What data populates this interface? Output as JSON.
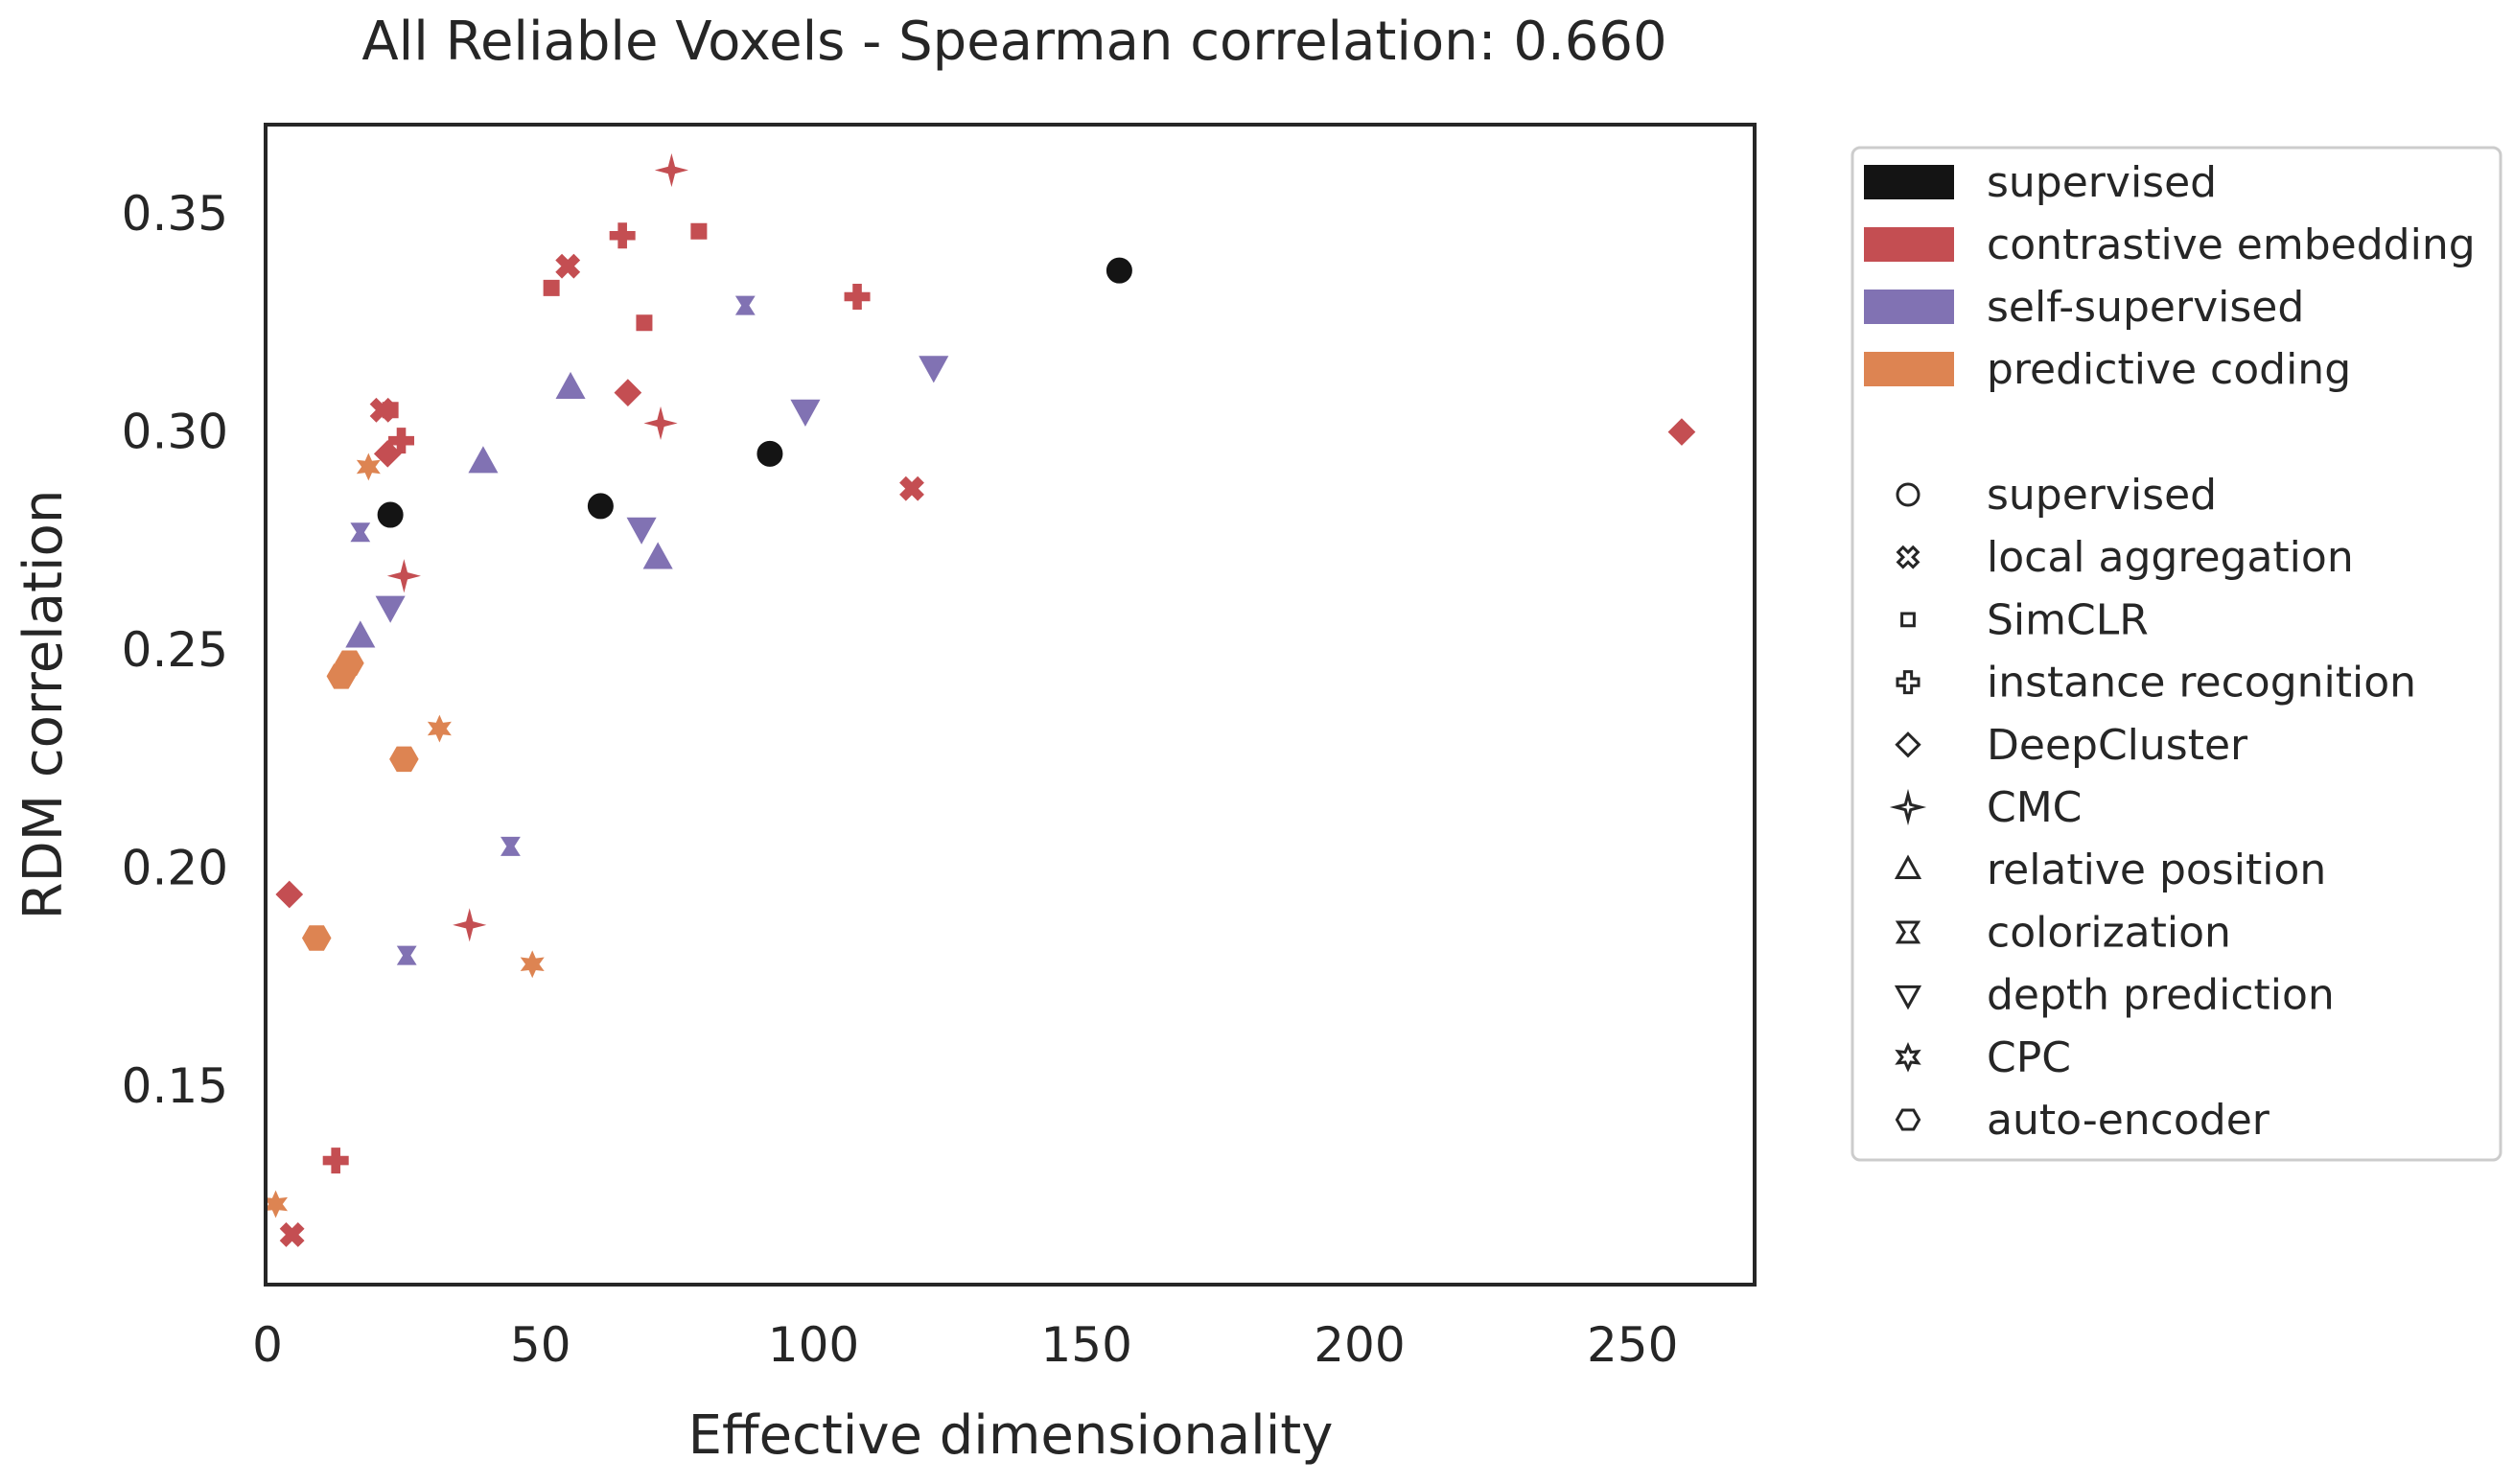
{
  "chart_data": {
    "type": "scatter",
    "title": "All Reliable Voxels - Spearman correlation: 0.660",
    "xlabel": "Effective dimensionality",
    "ylabel": "RDM correlation",
    "xlim": [
      0,
      272
    ],
    "ylim": [
      0.105,
      0.37
    ],
    "xticks": [
      0,
      50,
      100,
      150,
      200,
      250
    ],
    "yticks": [
      0.15,
      0.2,
      0.25,
      0.3,
      0.35
    ],
    "xtick_labels": [
      "0",
      "50",
      "100",
      "150",
      "200",
      "250"
    ],
    "ytick_labels": [
      "0.15",
      "0.20",
      "0.25",
      "0.30",
      "0.35"
    ],
    "grid": false,
    "legend_position": "outside-right",
    "colors": {
      "supervised": "#141414",
      "contrastive embedding": "#c44e52",
      "self-supervised": "#8172b3",
      "predictive coding": "#dd8452"
    },
    "legend": {
      "categories": [
        "supervised",
        "contrastive embedding",
        "self-supervised",
        "predictive coding"
      ],
      "methods": [
        {
          "label": "supervised",
          "marker": "circle"
        },
        {
          "label": "local aggregation",
          "marker": "x"
        },
        {
          "label": "SimCLR",
          "marker": "square"
        },
        {
          "label": "instance recognition",
          "marker": "plus"
        },
        {
          "label": "DeepCluster",
          "marker": "diamond"
        },
        {
          "label": "CMC",
          "marker": "star4"
        },
        {
          "label": "relative position",
          "marker": "triangle-up"
        },
        {
          "label": "colorization",
          "marker": "hourglass"
        },
        {
          "label": "depth prediction",
          "marker": "triangle-down"
        },
        {
          "label": "CPC",
          "marker": "star6"
        },
        {
          "label": "auto-encoder",
          "marker": "hexagon"
        }
      ]
    },
    "points": [
      {
        "x": 22.5,
        "y": 0.281,
        "category": "supervised",
        "marker": "circle"
      },
      {
        "x": 61,
        "y": 0.283,
        "category": "supervised",
        "marker": "circle"
      },
      {
        "x": 92,
        "y": 0.295,
        "category": "supervised",
        "marker": "circle"
      },
      {
        "x": 156,
        "y": 0.337,
        "category": "supervised",
        "marker": "circle"
      },
      {
        "x": 55,
        "y": 0.338,
        "category": "contrastive embedding",
        "marker": "x"
      },
      {
        "x": 118,
        "y": 0.287,
        "category": "contrastive embedding",
        "marker": "x"
      },
      {
        "x": 4.5,
        "y": 0.116,
        "category": "contrastive embedding",
        "marker": "x"
      },
      {
        "x": 21,
        "y": 0.305,
        "category": "contrastive embedding",
        "marker": "x"
      },
      {
        "x": 52,
        "y": 0.333,
        "category": "contrastive embedding",
        "marker": "square"
      },
      {
        "x": 79,
        "y": 0.346,
        "category": "contrastive embedding",
        "marker": "square"
      },
      {
        "x": 69,
        "y": 0.325,
        "category": "contrastive embedding",
        "marker": "square"
      },
      {
        "x": 22.5,
        "y": 0.305,
        "category": "contrastive embedding",
        "marker": "square"
      },
      {
        "x": 65,
        "y": 0.345,
        "category": "contrastive embedding",
        "marker": "plus"
      },
      {
        "x": 108,
        "y": 0.331,
        "category": "contrastive embedding",
        "marker": "plus"
      },
      {
        "x": 24.5,
        "y": 0.298,
        "category": "contrastive embedding",
        "marker": "plus"
      },
      {
        "x": 12.5,
        "y": 0.133,
        "category": "contrastive embedding",
        "marker": "plus"
      },
      {
        "x": 66,
        "y": 0.309,
        "category": "contrastive embedding",
        "marker": "diamond"
      },
      {
        "x": 259,
        "y": 0.3,
        "category": "contrastive embedding",
        "marker": "diamond"
      },
      {
        "x": 22,
        "y": 0.295,
        "category": "contrastive embedding",
        "marker": "diamond"
      },
      {
        "x": 4,
        "y": 0.194,
        "category": "contrastive embedding",
        "marker": "diamond"
      },
      {
        "x": 74,
        "y": 0.36,
        "category": "contrastive embedding",
        "marker": "star4"
      },
      {
        "x": 72,
        "y": 0.302,
        "category": "contrastive embedding",
        "marker": "star4"
      },
      {
        "x": 25,
        "y": 0.267,
        "category": "contrastive embedding",
        "marker": "star4"
      },
      {
        "x": 37,
        "y": 0.187,
        "category": "contrastive embedding",
        "marker": "star4"
      },
      {
        "x": 55.5,
        "y": 0.31,
        "category": "self-supervised",
        "marker": "triangle-up"
      },
      {
        "x": 39.5,
        "y": 0.293,
        "category": "self-supervised",
        "marker": "triangle-up"
      },
      {
        "x": 71.5,
        "y": 0.271,
        "category": "self-supervised",
        "marker": "triangle-up"
      },
      {
        "x": 17,
        "y": 0.253,
        "category": "self-supervised",
        "marker": "triangle-up"
      },
      {
        "x": 87.5,
        "y": 0.329,
        "category": "self-supervised",
        "marker": "hourglass"
      },
      {
        "x": 17,
        "y": 0.277,
        "category": "self-supervised",
        "marker": "hourglass"
      },
      {
        "x": 44.5,
        "y": 0.205,
        "category": "self-supervised",
        "marker": "hourglass"
      },
      {
        "x": 25.5,
        "y": 0.18,
        "category": "self-supervised",
        "marker": "hourglass"
      },
      {
        "x": 122,
        "y": 0.315,
        "category": "self-supervised",
        "marker": "triangle-down"
      },
      {
        "x": 98.5,
        "y": 0.305,
        "category": "self-supervised",
        "marker": "triangle-down"
      },
      {
        "x": 68.5,
        "y": 0.278,
        "category": "self-supervised",
        "marker": "triangle-down"
      },
      {
        "x": 22.5,
        "y": 0.26,
        "category": "self-supervised",
        "marker": "triangle-down"
      },
      {
        "x": 18.5,
        "y": 0.292,
        "category": "predictive coding",
        "marker": "star6"
      },
      {
        "x": 31.5,
        "y": 0.232,
        "category": "predictive coding",
        "marker": "star6"
      },
      {
        "x": 48.5,
        "y": 0.178,
        "category": "predictive coding",
        "marker": "star6"
      },
      {
        "x": 1.5,
        "y": 0.123,
        "category": "predictive coding",
        "marker": "star6"
      },
      {
        "x": 15,
        "y": 0.247,
        "category": "predictive coding",
        "marker": "hexagon"
      },
      {
        "x": 13.5,
        "y": 0.244,
        "category": "predictive coding",
        "marker": "hexagon"
      },
      {
        "x": 25,
        "y": 0.225,
        "category": "predictive coding",
        "marker": "hexagon"
      },
      {
        "x": 9,
        "y": 0.184,
        "category": "predictive coding",
        "marker": "hexagon"
      }
    ]
  }
}
